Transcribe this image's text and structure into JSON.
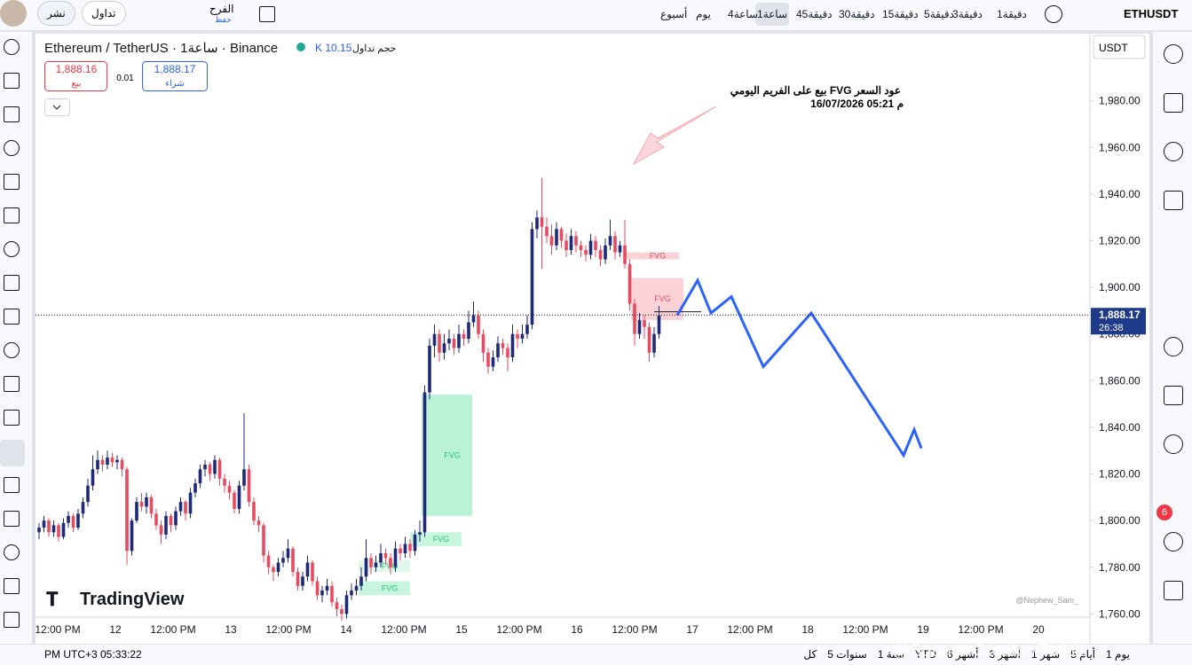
{
  "toolbar": {
    "symbol": "ETHUSDT",
    "intervals": [
      "1دقيقة",
      "3دقيقة",
      "5دقيقة",
      "15دقيقة",
      "30دقيقة",
      "45دقيقة",
      "1ساعة",
      "4ساعة",
      "يوم",
      "أسبوع"
    ],
    "save_name": "الفرح",
    "save": "حفظ",
    "trade": "تداول",
    "publish": "نشر"
  },
  "legend": {
    "title": "Ethereum / TetherUS · 1ساعة · Binance",
    "volume_label": "حجم تداول",
    "volume": "K 10.15",
    "sell_price": "1,888.16",
    "sell": "بيع",
    "spread": "0.01",
    "buy_price": "1,888.17",
    "buy": "شراء"
  },
  "chart_data": {
    "type": "candlestick",
    "currency": "USDT",
    "up_color": "#1e2a78",
    "down_color": "#e84a5f",
    "ohlc": [
      [
        1795,
        1799,
        1792,
        1797
      ],
      [
        1797,
        1802,
        1795,
        1800
      ],
      [
        1800,
        1801,
        1793,
        1795
      ],
      [
        1795,
        1800,
        1793,
        1798
      ],
      [
        1798,
        1799,
        1791,
        1793
      ],
      [
        1793,
        1801,
        1792,
        1799
      ],
      [
        1799,
        1804,
        1797,
        1802
      ],
      [
        1802,
        1803,
        1795,
        1797
      ],
      [
        1797,
        1805,
        1796,
        1803
      ],
      [
        1803,
        1810,
        1801,
        1808
      ],
      [
        1808,
        1818,
        1806,
        1815
      ],
      [
        1815,
        1828,
        1813,
        1822
      ],
      [
        1822,
        1830,
        1820,
        1826
      ],
      [
        1826,
        1828,
        1821,
        1824
      ],
      [
        1824,
        1830,
        1822,
        1827
      ],
      [
        1827,
        1829,
        1823,
        1825
      ],
      [
        1825,
        1828,
        1822,
        1826
      ],
      [
        1826,
        1827,
        1819,
        1822
      ],
      [
        1822,
        1823,
        1781,
        1787
      ],
      [
        1787,
        1801,
        1785,
        1800
      ],
      [
        1800,
        1810,
        1799,
        1808
      ],
      [
        1808,
        1812,
        1804,
        1806
      ],
      [
        1806,
        1812,
        1803,
        1810
      ],
      [
        1810,
        1811,
        1801,
        1803
      ],
      [
        1803,
        1805,
        1796,
        1798
      ],
      [
        1798,
        1800,
        1790,
        1794
      ],
      [
        1794,
        1804,
        1792,
        1802
      ],
      [
        1802,
        1803,
        1795,
        1798
      ],
      [
        1798,
        1806,
        1796,
        1804
      ],
      [
        1804,
        1810,
        1802,
        1808
      ],
      [
        1808,
        1809,
        1800,
        1803
      ],
      [
        1803,
        1814,
        1801,
        1812
      ],
      [
        1812,
        1818,
        1810,
        1816
      ],
      [
        1816,
        1824,
        1814,
        1822
      ],
      [
        1822,
        1826,
        1819,
        1824
      ],
      [
        1824,
        1825,
        1817,
        1820
      ],
      [
        1820,
        1828,
        1818,
        1826
      ],
      [
        1826,
        1827,
        1815,
        1818
      ],
      [
        1818,
        1820,
        1812,
        1815
      ],
      [
        1815,
        1817,
        1809,
        1812
      ],
      [
        1812,
        1813,
        1803,
        1805
      ],
      [
        1805,
        1817,
        1803,
        1815
      ],
      [
        1815,
        1846,
        1813,
        1822
      ],
      [
        1822,
        1824,
        1806,
        1808
      ],
      [
        1808,
        1810,
        1798,
        1800
      ],
      [
        1800,
        1802,
        1795,
        1798
      ],
      [
        1798,
        1799,
        1782,
        1785
      ],
      [
        1785,
        1787,
        1777,
        1780
      ],
      [
        1780,
        1781,
        1774,
        1778
      ],
      [
        1778,
        1784,
        1776,
        1782
      ],
      [
        1782,
        1787,
        1780,
        1784
      ],
      [
        1784,
        1792,
        1782,
        1788
      ],
      [
        1788,
        1789,
        1776,
        1778
      ],
      [
        1778,
        1780,
        1770,
        1772
      ],
      [
        1772,
        1778,
        1770,
        1776
      ],
      [
        1776,
        1785,
        1774,
        1782
      ],
      [
        1782,
        1783,
        1772,
        1774
      ],
      [
        1774,
        1776,
        1766,
        1768
      ],
      [
        1768,
        1772,
        1765,
        1770
      ],
      [
        1770,
        1775,
        1768,
        1772
      ],
      [
        1772,
        1774,
        1763,
        1765
      ],
      [
        1765,
        1767,
        1759,
        1762
      ],
      [
        1762,
        1764,
        1757,
        1760
      ],
      [
        1760,
        1770,
        1758,
        1768
      ],
      [
        1768,
        1773,
        1766,
        1770
      ],
      [
        1770,
        1775,
        1768,
        1772
      ],
      [
        1772,
        1780,
        1770,
        1776
      ],
      [
        1776,
        1792,
        1774,
        1784
      ],
      [
        1784,
        1786,
        1777,
        1780
      ],
      [
        1780,
        1785,
        1778,
        1782
      ],
      [
        1782,
        1790,
        1780,
        1786
      ],
      [
        1786,
        1788,
        1781,
        1784
      ],
      [
        1784,
        1786,
        1777,
        1780
      ],
      [
        1780,
        1791,
        1778,
        1788
      ],
      [
        1788,
        1790,
        1783,
        1786
      ],
      [
        1786,
        1793,
        1784,
        1790
      ],
      [
        1790,
        1792,
        1784,
        1787
      ],
      [
        1787,
        1796,
        1785,
        1794
      ],
      [
        1794,
        1800,
        1791,
        1795
      ],
      [
        1795,
        1858,
        1793,
        1855
      ],
      [
        1855,
        1878,
        1852,
        1875
      ],
      [
        1875,
        1884,
        1870,
        1880
      ],
      [
        1880,
        1882,
        1868,
        1872
      ],
      [
        1872,
        1880,
        1869,
        1876
      ],
      [
        1876,
        1882,
        1873,
        1878
      ],
      [
        1878,
        1880,
        1871,
        1874
      ],
      [
        1874,
        1884,
        1872,
        1880
      ],
      [
        1880,
        1882,
        1875,
        1878
      ],
      [
        1878,
        1890,
        1876,
        1885
      ],
      [
        1885,
        1894,
        1883,
        1888
      ],
      [
        1888,
        1890,
        1878,
        1880
      ],
      [
        1880,
        1882,
        1868,
        1872
      ],
      [
        1872,
        1874,
        1863,
        1866
      ],
      [
        1866,
        1873,
        1864,
        1870
      ],
      [
        1870,
        1879,
        1868,
        1876
      ],
      [
        1876,
        1878,
        1871,
        1874
      ],
      [
        1874,
        1876,
        1864,
        1870
      ],
      [
        1870,
        1884,
        1868,
        1880
      ],
      [
        1880,
        1882,
        1874,
        1878
      ],
      [
        1878,
        1884,
        1876,
        1880
      ],
      [
        1880,
        1888,
        1878,
        1884
      ],
      [
        1884,
        1928,
        1882,
        1925
      ],
      [
        1925,
        1933,
        1921,
        1930
      ],
      [
        1930,
        1947,
        1908,
        1926
      ],
      [
        1926,
        1930,
        1919,
        1922
      ],
      [
        1922,
        1927,
        1914,
        1918
      ],
      [
        1918,
        1928,
        1916,
        1925
      ],
      [
        1925,
        1926,
        1917,
        1920
      ],
      [
        1920,
        1923,
        1913,
        1916
      ],
      [
        1916,
        1925,
        1914,
        1922
      ],
      [
        1922,
        1924,
        1915,
        1918
      ],
      [
        1918,
        1920,
        1913,
        1916
      ],
      [
        1916,
        1918,
        1911,
        1914
      ],
      [
        1914,
        1923,
        1912,
        1920
      ],
      [
        1920,
        1922,
        1913,
        1916
      ],
      [
        1916,
        1918,
        1909,
        1912
      ],
      [
        1912,
        1921,
        1910,
        1918
      ],
      [
        1918,
        1929,
        1916,
        1922
      ],
      [
        1922,
        1924,
        1912,
        1915
      ],
      [
        1915,
        1920,
        1913,
        1918
      ],
      [
        1918,
        1929,
        1908,
        1910
      ],
      [
        1910,
        1912,
        1890,
        1893
      ],
      [
        1893,
        1895,
        1875,
        1880
      ],
      [
        1880,
        1889,
        1878,
        1886
      ],
      [
        1886,
        1888,
        1878,
        1883
      ],
      [
        1883,
        1885,
        1868,
        1872
      ],
      [
        1872,
        1883,
        1870,
        1880
      ],
      [
        1880,
        1892,
        1878,
        1888
      ]
    ],
    "ylim": [
      1759,
      2008
    ],
    "yticks": [
      {
        "value": 1760,
        "label": "1,760.00"
      },
      {
        "value": 1780,
        "label": "1,780.00"
      },
      {
        "value": 1800,
        "label": "1,800.00"
      },
      {
        "value": 1820,
        "label": "1,820.00"
      },
      {
        "value": 1840,
        "label": "1,840.00"
      },
      {
        "value": 1860,
        "label": "1,860.00"
      },
      {
        "value": 1880,
        "label": "1,880.00"
      },
      {
        "value": 1900,
        "label": "1,900.00"
      },
      {
        "value": 1920,
        "label": "1,920.00"
      },
      {
        "value": 1940,
        "label": "1,940.00"
      },
      {
        "value": 1960,
        "label": "1,960.00"
      },
      {
        "value": 1980,
        "label": "1,980.00"
      }
    ],
    "x_labels": [
      "12:00 PM",
      "12",
      "12:00 PM",
      "13",
      "12:00 PM",
      "14",
      "12:00 PM",
      "15",
      "12:00 PM",
      "16",
      "12:00 PM",
      "17",
      "12:00 PM",
      "18",
      "12:00 PM",
      "19",
      "12:00 PM",
      "20"
    ],
    "last_price": 1888.17,
    "last_price_label": "1,888.17",
    "countdown": "26:38",
    "fvg_zones": [
      {
        "label": "FVG",
        "top": 1854,
        "bottom": 1802,
        "color": "#b9f2d5"
      },
      {
        "label": "FVG",
        "top": 1795,
        "bottom": 1789,
        "color": "#c8f5dd"
      },
      {
        "label": "FVG",
        "top": 1783,
        "bottom": 1778,
        "color": "#e3f8ec"
      },
      {
        "label": "FVG",
        "top": 1774,
        "bottom": 1768,
        "color": "#c8f5dd"
      },
      {
        "label": "FVG",
        "top": 1915,
        "bottom": 1912,
        "color": "#fbd3d7"
      },
      {
        "label": "FVG",
        "top": 1904,
        "bottom": 1886,
        "color": "#fbd3d7"
      }
    ],
    "projection": [
      1888,
      1903,
      1889,
      1896,
      1866,
      1889,
      1828,
      1839,
      1831
    ],
    "projection_color": "#2962ff",
    "annotation": [
      "بيع على الفريم اليومي FVG عود السعر",
      "16/07/2026 05:21 م"
    ],
    "watermark": "@Nephew_Sam_",
    "logo": "TradingView"
  },
  "footer": {
    "time": "PM UTC+3 05:33:22",
    "ranges": [
      "1 يوم",
      "5 أيام",
      "1 شهر",
      "3 أشهر",
      "6 أشهر",
      "YTD",
      "1 سنة",
      "5 سنوات",
      "كل"
    ]
  },
  "alerts_badge": "6",
  "overlay": "@Square-Creator-7b811"
}
